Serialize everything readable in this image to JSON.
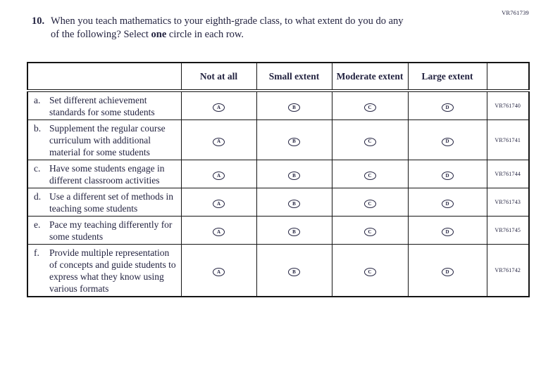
{
  "page": {
    "form_code_top": "VR761739",
    "colors": {
      "ink": "#232340",
      "border": "#151515",
      "background": "#ffffff"
    }
  },
  "question": {
    "number": "10.",
    "line1": "When you teach mathematics to your eighth-grade class, to what extent do you do any",
    "line2_before": "of the following? Select ",
    "line2_bold": "one",
    "line2_after": " circle in each row."
  },
  "table": {
    "headers": [
      "",
      "Not at all",
      "Small extent",
      "Moderate extent",
      "Large extent",
      ""
    ],
    "bubble_letters": [
      "A",
      "B",
      "C",
      "D"
    ],
    "rows": [
      {
        "letter": "a.",
        "text": "Set different achievement standards for some students",
        "code": "VR761740"
      },
      {
        "letter": "b.",
        "text": "Supplement the regular course curriculum with additional material for some students",
        "code": "VR761741"
      },
      {
        "letter": "c.",
        "text": "Have some students engage in different classroom activities",
        "code": "VR761744"
      },
      {
        "letter": "d.",
        "text": "Use a different set of methods in teaching some students",
        "code": "VR761743"
      },
      {
        "letter": "e.",
        "text": "Pace my teaching differently for some students",
        "code": "VR761745"
      },
      {
        "letter": "f.",
        "text": "Provide multiple representation of concepts and guide students to express what they know using various formats",
        "code": "VR761742"
      }
    ]
  }
}
